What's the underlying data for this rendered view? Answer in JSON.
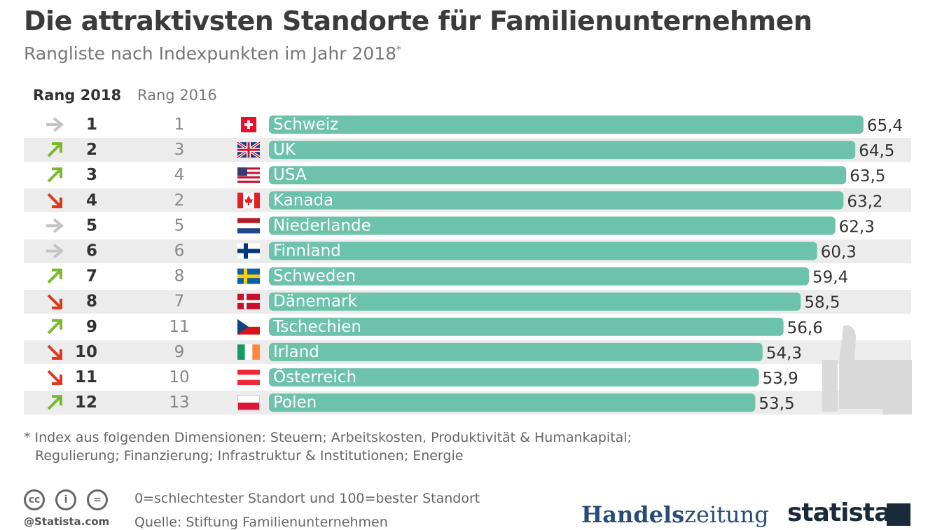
{
  "title": "Die attraktivsten Standorte für Familienunternehmen",
  "subtitle": "Rangliste nach Indexpunkten im Jahr 2018",
  "subtitle_marker": "*",
  "columns": {
    "rank2018": "Rang 2018",
    "rank2016": "Rang 2016"
  },
  "colors": {
    "bar": "#6cc2aa",
    "up": "#7cb82f",
    "down": "#d93a1c",
    "same": "#c4c4c4",
    "stripe": "#ececec"
  },
  "chart_data": {
    "type": "bar",
    "orientation": "horizontal",
    "title": "Die attraktivsten Standorte für Familienunternehmen",
    "subtitle": "Rangliste nach Indexpunkten im Jahr 2018*",
    "categories": [
      "Schweiz",
      "UK",
      "USA",
      "Kanada",
      "Niederlande",
      "Finnland",
      "Schweden",
      "Dänemark",
      "Tschechien",
      "Irland",
      "Österreich",
      "Polen"
    ],
    "values": [
      65.4,
      64.5,
      63.5,
      63.2,
      62.3,
      60.3,
      59.4,
      58.5,
      56.6,
      54.3,
      53.9,
      53.5
    ],
    "value_labels": [
      "65,4",
      "64,5",
      "63,5",
      "63,2",
      "62,3",
      "60,3",
      "59,4",
      "58,5",
      "56,6",
      "54,3",
      "53,9",
      "53,5"
    ],
    "rank_2018": [
      "1",
      "2",
      "3",
      "4",
      "5",
      "6",
      "7",
      "8",
      "9",
      "10",
      "11",
      "12"
    ],
    "rank_2016": [
      "1",
      "3",
      "4",
      "2",
      "5",
      "6",
      "8",
      "7",
      "11",
      "9",
      "10",
      "13"
    ],
    "trend": [
      "same",
      "up",
      "up",
      "down",
      "same",
      "same",
      "up",
      "down",
      "up",
      "down",
      "down",
      "up"
    ],
    "flags": [
      "switzerland-flag-icon",
      "uk-flag-icon",
      "usa-flag-icon",
      "canada-flag-icon",
      "netherlands-flag-icon",
      "finland-flag-icon",
      "sweden-flag-icon",
      "denmark-flag-icon",
      "czech-flag-icon",
      "ireland-flag-icon",
      "austria-flag-icon",
      "poland-flag-icon"
    ],
    "alternating_row_stripes": true,
    "gridlines": false
  },
  "footnote": {
    "line1": "* Index aus folgenden Dimensionen: Steuern; Arbeitskosten, Produktivität & Humankapital;",
    "line2": "Regulierung; Finanzierung; Infrastruktur & Institutionen; Energie"
  },
  "legend_note": "0=schlechtester Standort und 100=bester Standort",
  "source": "Quelle: Stiftung Familienunternehmen",
  "credit": "@Statista.com",
  "license_icons": [
    "cc-icon",
    "attribution-icon",
    "equal-icon"
  ],
  "license_glyphs": [
    "cc",
    "i",
    "="
  ],
  "logos": {
    "handelszeitung_a": "Handels",
    "handelszeitung_b": "zeitung",
    "statista": "statista"
  }
}
